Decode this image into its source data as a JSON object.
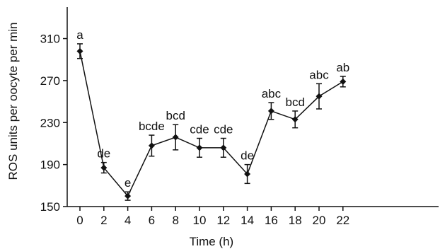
{
  "chart_data": {
    "type": "line",
    "xlabel": "Time (h)",
    "ylabel": "ROS units per oocyte per min",
    "xlim": [
      -1,
      22.5
    ],
    "ylim": [
      150,
      340
    ],
    "x_ticks": [
      0,
      2,
      4,
      6,
      8,
      10,
      12,
      14,
      16,
      18,
      20,
      22
    ],
    "x_tick_labels": [
      "0",
      "2",
      "4",
      "6",
      "8",
      "10",
      "12",
      "14",
      "16",
      "18",
      "20",
      "22"
    ],
    "y_ticks": [
      150,
      190,
      230,
      270,
      310
    ],
    "y_tick_labels": [
      "150",
      "190",
      "230",
      "270",
      "310"
    ],
    "grid": false,
    "legend": "none",
    "line_color": "#111111",
    "series": [
      {
        "x": [
          0,
          2,
          4,
          6,
          8,
          10,
          12,
          14,
          16,
          18,
          20,
          22
        ],
        "y": [
          298,
          187,
          160,
          208,
          216,
          206,
          206,
          181,
          241,
          233,
          255,
          269
        ],
        "error": [
          7,
          5,
          4,
          10,
          12,
          9,
          9,
          9,
          8,
          8,
          12,
          5
        ],
        "labels": [
          "a",
          "de",
          "e",
          "bcde",
          "bcd",
          "cde",
          "cde",
          "de",
          "abc",
          "bcd",
          "abc",
          "ab"
        ]
      }
    ]
  }
}
